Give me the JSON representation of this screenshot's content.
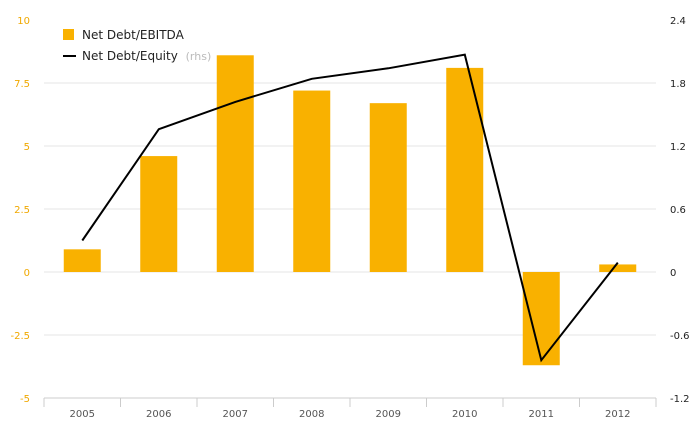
{
  "chart_data": {
    "type": "bar+line",
    "categories": [
      "2005",
      "2006",
      "2007",
      "2008",
      "2009",
      "2010",
      "2011",
      "2012"
    ],
    "series": [
      {
        "name": "Net Debt/EBITDA",
        "type": "bar",
        "axis": "left",
        "values": [
          0.9,
          4.6,
          8.6,
          7.2,
          6.7,
          8.1,
          -3.7,
          0.3
        ]
      },
      {
        "name": "Net Debt/Equity",
        "name_suffix": "(rhs)",
        "type": "line",
        "axis": "right",
        "values": [
          0.3,
          1.36,
          1.62,
          1.84,
          1.94,
          2.07,
          -0.84,
          0.09
        ]
      }
    ],
    "y_left": {
      "min": -5,
      "max": 10,
      "ticks": [
        "10",
        "7.5",
        "5",
        "2.5",
        "0",
        "-2.5",
        "-5"
      ],
      "tick_values": [
        10,
        7.5,
        5,
        2.5,
        0,
        -2.5,
        -5
      ]
    },
    "y_right": {
      "min": -1.2,
      "max": 2.4,
      "ticks": [
        "2.4",
        "1.8",
        "1.2",
        "0.6",
        "0",
        "-0.6",
        "-1.2"
      ],
      "tick_values": [
        2.4,
        1.8,
        1.2,
        0.6,
        0,
        -0.6,
        -1.2
      ]
    },
    "grid": true,
    "legend_position": "top-left",
    "colors": {
      "bar": "#f9b100",
      "line": "#000000",
      "left_ticks": "#f0a800",
      "right_ticks": "#222222",
      "x_ticks": "#555555",
      "grid": "#e6e6e6",
      "legend_suffix": "#bbbbbb"
    }
  }
}
